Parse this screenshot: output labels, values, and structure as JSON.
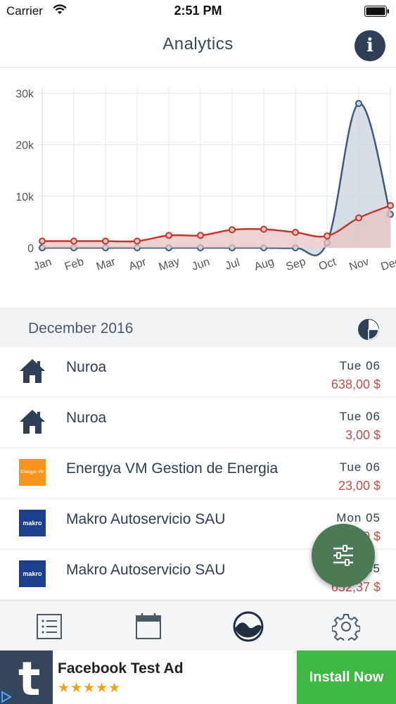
{
  "status_bar": {
    "carrier": "Carrier",
    "time": "2:51 PM"
  },
  "nav": {
    "title": "Analytics",
    "info_icon": "info-icon"
  },
  "chart_data": {
    "type": "area",
    "categories": [
      "Jan",
      "Feb",
      "Mar",
      "Apr",
      "May",
      "Jun",
      "Jul",
      "Aug",
      "Sep",
      "Oct",
      "Nov",
      "Dec"
    ],
    "yticks": [
      "0",
      "10k",
      "20k",
      "30k"
    ],
    "ylim": [
      0,
      31000
    ],
    "grid": true,
    "series": [
      {
        "color": "#3e5a7a",
        "fill": "#c9d3dd",
        "values": [
          0,
          0,
          0,
          0,
          0,
          0,
          0,
          0,
          0,
          1000,
          28000,
          6500
        ]
      },
      {
        "color": "#c0392b",
        "fill": "#e9c3c3",
        "values": [
          1300,
          1300,
          1300,
          1300,
          2400,
          2400,
          3500,
          3600,
          3000,
          2300,
          5800,
          8200
        ]
      }
    ]
  },
  "section": {
    "title": "December 2016",
    "pie_icon": "pie-chart-icon"
  },
  "transactions": [
    {
      "name": "Nuroa",
      "date": "Tue 06",
      "amount": "638,00 $",
      "icon": "house-icon"
    },
    {
      "name": "Nuroa",
      "date": "Tue 06",
      "amount": "3,00 $",
      "icon": "house-icon"
    },
    {
      "name": "Energya VM Gestion de Energia",
      "date": "Tue 06",
      "amount": "23,00 $",
      "icon": "energya-logo",
      "logo_text": "Energya VM"
    },
    {
      "name": "Makro Autoservicio SAU",
      "date": "Mon 05",
      "amount": "12,50 $",
      "icon": "makro-logo",
      "logo_text": "makro"
    },
    {
      "name": "Makro Autoservicio SAU",
      "date": "Mon 05",
      "amount": "652,37 $",
      "icon": "makro-logo",
      "logo_text": "makro"
    }
  ],
  "fab": {
    "icon": "filter-sliders-icon"
  },
  "tabs": [
    {
      "icon": "list-icon",
      "active": false
    },
    {
      "icon": "calendar-icon",
      "active": false
    },
    {
      "icon": "analytics-wave-icon",
      "active": true
    },
    {
      "icon": "gear-icon",
      "active": false
    }
  ],
  "ad": {
    "logo_letter": "t",
    "title": "Facebook Test Ad",
    "stars": "★★★★★",
    "cta": "Install Now"
  },
  "colors": {
    "accent": "#2e4057",
    "fab": "#4b7a54",
    "amount": "#c0504d",
    "install": "#3fb843"
  }
}
